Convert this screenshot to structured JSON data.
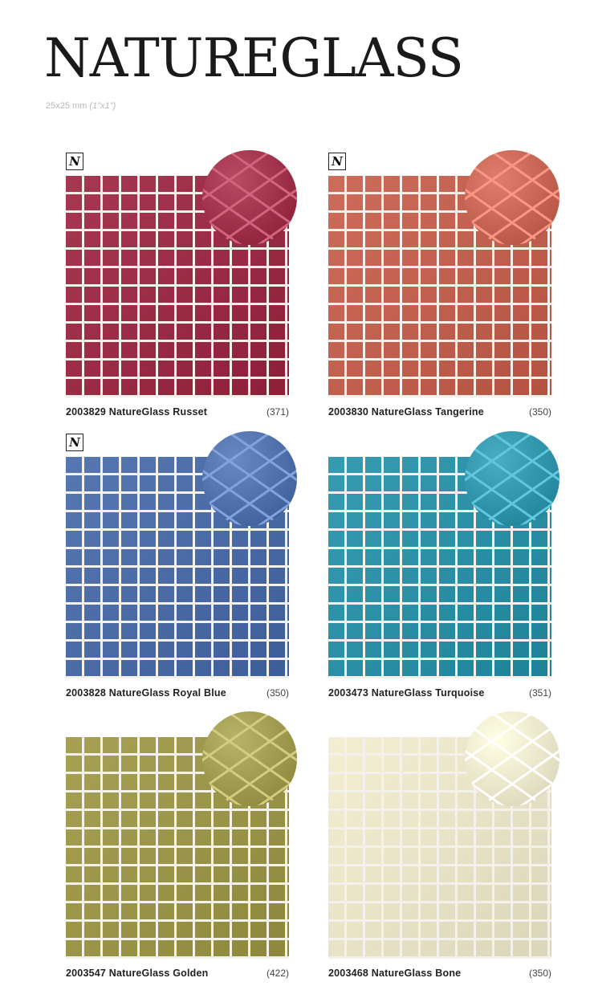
{
  "header": {
    "title": "NATUREGLASS",
    "size_mm": "25x25 mm",
    "size_in": "(1\"x1\")"
  },
  "badge_letter": "N",
  "tiles": [
    {
      "name": "2003829 NatureGlass Russet",
      "code": "(371)",
      "color": "#9a2d45",
      "badge": true
    },
    {
      "name": "2003830 NatureGlass Tangerine",
      "code": "(350)",
      "color": "#c2604f",
      "badge": true
    },
    {
      "name": "2003828 NatureGlass Royal Blue",
      "code": "(350)",
      "color": "#4b6ba6",
      "badge": true
    },
    {
      "name": "2003473 NatureGlass Turquoise",
      "code": "(351)",
      "color": "#2b8fa5",
      "badge": false
    },
    {
      "name": "2003547 NatureGlass Golden",
      "code": "(422)",
      "color": "#9a9548",
      "badge": false
    },
    {
      "name": "2003468 NatureGlass Bone",
      "code": "(350)",
      "color": "#e8e3c6",
      "badge": false
    }
  ]
}
